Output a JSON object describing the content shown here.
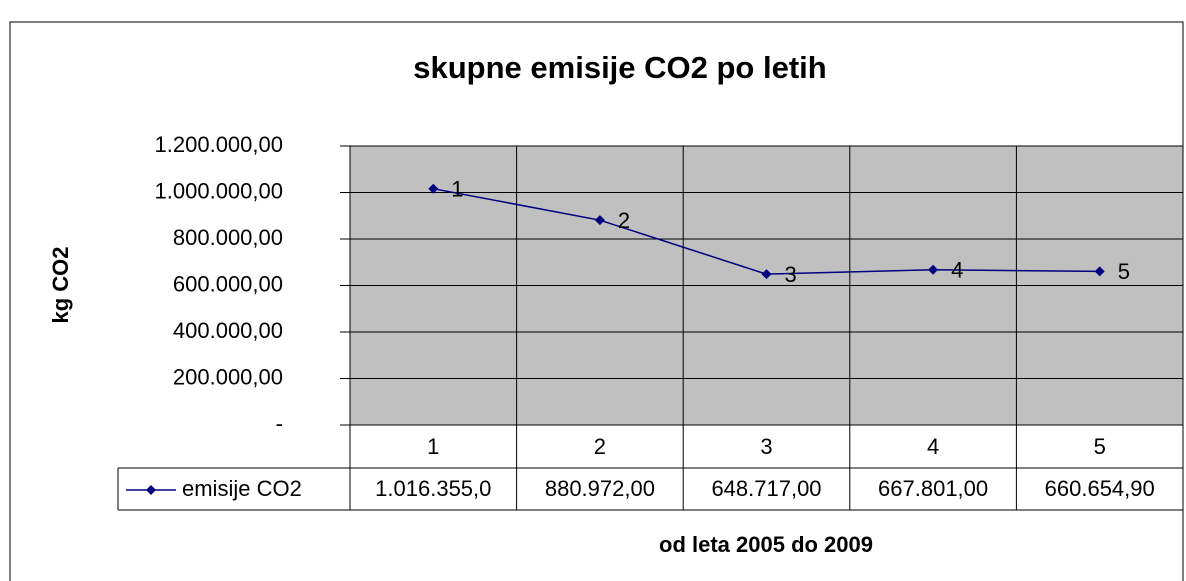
{
  "chart_data": {
    "type": "line",
    "title": "skupne emisije CO2 po letih",
    "y_label": "kg CO2",
    "x_label": "od leta 2005 do 2009",
    "categories": [
      "1",
      "2",
      "3",
      "4",
      "5"
    ],
    "series": [
      {
        "name": "emisije CO2",
        "color": "#000080",
        "values": [
          1016355,
          880972,
          648717,
          667801,
          660654.9
        ],
        "value_labels": [
          "1.016.355,0",
          "880.972,00",
          "648.717,00",
          "667.801,00",
          "660.654,90"
        ]
      }
    ],
    "ylim": [
      0,
      1200000
    ],
    "yticks": [
      {
        "value": 0,
        "label": "-"
      },
      {
        "value": 200000,
        "label": "200.000,00"
      },
      {
        "value": 400000,
        "label": "400.000,00"
      },
      {
        "value": 600000,
        "label": "600.000,00"
      },
      {
        "value": 800000,
        "label": "800.000,00"
      },
      {
        "value": 1000000,
        "label": "1.000.000,00"
      },
      {
        "value": 1200000,
        "label": "1.200.000,00"
      }
    ],
    "grid": true,
    "plot_background": "#c0c0c0"
  }
}
